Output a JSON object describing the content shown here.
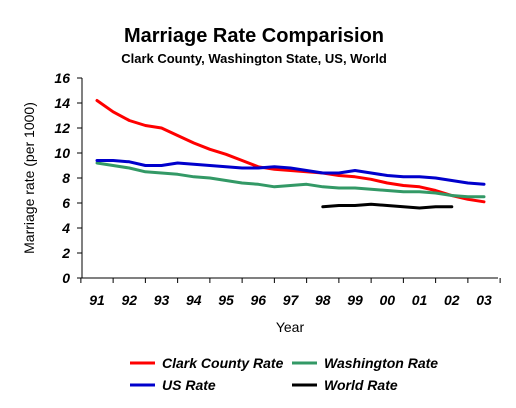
{
  "chart_data": {
    "type": "line",
    "title": "Marriage Rate Comparision",
    "subtitle": "Clark County, Washington State, US, World",
    "xlabel": "Year",
    "ylabel": "Marriage rate (per 1000)",
    "ylim": [
      0,
      16
    ],
    "yticks": [
      "0",
      "2",
      "4",
      "6",
      "8",
      "10",
      "12",
      "14",
      "16"
    ],
    "categories": [
      "91",
      "92",
      "93",
      "94",
      "95",
      "96",
      "97",
      "98",
      "99",
      "00",
      "01",
      "02",
      "03"
    ],
    "grid": false,
    "legend": "bottom",
    "series": [
      {
        "name": "Clark County Rate",
        "color": "#ff0000",
        "points": [
          {
            "x": 0.0,
            "y": 14.2
          },
          {
            "x": 0.5,
            "y": 13.3
          },
          {
            "x": 1.0,
            "y": 12.6
          },
          {
            "x": 1.5,
            "y": 12.2
          },
          {
            "x": 2.0,
            "y": 12.0
          },
          {
            "x": 2.5,
            "y": 11.4
          },
          {
            "x": 3.0,
            "y": 10.8
          },
          {
            "x": 3.5,
            "y": 10.3
          },
          {
            "x": 4.0,
            "y": 9.9
          },
          {
            "x": 4.5,
            "y": 9.4
          },
          {
            "x": 5.0,
            "y": 8.9
          },
          {
            "x": 5.5,
            "y": 8.7
          },
          {
            "x": 6.0,
            "y": 8.6
          },
          {
            "x": 6.5,
            "y": 8.5
          },
          {
            "x": 7.0,
            "y": 8.4
          },
          {
            "x": 7.5,
            "y": 8.2
          },
          {
            "x": 8.0,
            "y": 8.1
          },
          {
            "x": 8.5,
            "y": 7.9
          },
          {
            "x": 9.0,
            "y": 7.6
          },
          {
            "x": 9.5,
            "y": 7.4
          },
          {
            "x": 10.0,
            "y": 7.3
          },
          {
            "x": 10.5,
            "y": 7.0
          },
          {
            "x": 11.0,
            "y": 6.6
          },
          {
            "x": 11.5,
            "y": 6.3
          },
          {
            "x": 12.0,
            "y": 6.1
          }
        ]
      },
      {
        "name": "Washington Rate",
        "color": "#339966",
        "points": [
          {
            "x": 0.0,
            "y": 9.2
          },
          {
            "x": 0.5,
            "y": 9.0
          },
          {
            "x": 1.0,
            "y": 8.8
          },
          {
            "x": 1.5,
            "y": 8.5
          },
          {
            "x": 2.0,
            "y": 8.4
          },
          {
            "x": 2.5,
            "y": 8.3
          },
          {
            "x": 3.0,
            "y": 8.1
          },
          {
            "x": 3.5,
            "y": 8.0
          },
          {
            "x": 4.0,
            "y": 7.8
          },
          {
            "x": 4.5,
            "y": 7.6
          },
          {
            "x": 5.0,
            "y": 7.5
          },
          {
            "x": 5.5,
            "y": 7.3
          },
          {
            "x": 6.0,
            "y": 7.4
          },
          {
            "x": 6.5,
            "y": 7.5
          },
          {
            "x": 7.0,
            "y": 7.3
          },
          {
            "x": 7.5,
            "y": 7.2
          },
          {
            "x": 8.0,
            "y": 7.2
          },
          {
            "x": 8.5,
            "y": 7.1
          },
          {
            "x": 9.0,
            "y": 7.0
          },
          {
            "x": 9.5,
            "y": 6.9
          },
          {
            "x": 10.0,
            "y": 6.9
          },
          {
            "x": 10.5,
            "y": 6.8
          },
          {
            "x": 11.0,
            "y": 6.6
          },
          {
            "x": 11.5,
            "y": 6.5
          },
          {
            "x": 12.0,
            "y": 6.5
          }
        ]
      },
      {
        "name": "US Rate",
        "color": "#0000cc",
        "points": [
          {
            "x": 0.0,
            "y": 9.4
          },
          {
            "x": 0.5,
            "y": 9.4
          },
          {
            "x": 1.0,
            "y": 9.3
          },
          {
            "x": 1.5,
            "y": 9.0
          },
          {
            "x": 2.0,
            "y": 9.0
          },
          {
            "x": 2.5,
            "y": 9.2
          },
          {
            "x": 3.0,
            "y": 9.1
          },
          {
            "x": 3.5,
            "y": 9.0
          },
          {
            "x": 4.0,
            "y": 8.9
          },
          {
            "x": 4.5,
            "y": 8.8
          },
          {
            "x": 5.0,
            "y": 8.8
          },
          {
            "x": 5.5,
            "y": 8.9
          },
          {
            "x": 6.0,
            "y": 8.8
          },
          {
            "x": 6.5,
            "y": 8.6
          },
          {
            "x": 7.0,
            "y": 8.4
          },
          {
            "x": 7.5,
            "y": 8.4
          },
          {
            "x": 8.0,
            "y": 8.6
          },
          {
            "x": 8.5,
            "y": 8.4
          },
          {
            "x": 9.0,
            "y": 8.2
          },
          {
            "x": 9.5,
            "y": 8.1
          },
          {
            "x": 10.0,
            "y": 8.1
          },
          {
            "x": 10.5,
            "y": 8.0
          },
          {
            "x": 11.0,
            "y": 7.8
          },
          {
            "x": 11.5,
            "y": 7.6
          },
          {
            "x": 12.0,
            "y": 7.5
          }
        ]
      },
      {
        "name": "World Rate",
        "color": "#000000",
        "points": [
          {
            "x": 7.0,
            "y": 5.7
          },
          {
            "x": 7.5,
            "y": 5.8
          },
          {
            "x": 8.0,
            "y": 5.8
          },
          {
            "x": 8.5,
            "y": 5.9
          },
          {
            "x": 9.0,
            "y": 5.8
          },
          {
            "x": 9.5,
            "y": 5.7
          },
          {
            "x": 10.0,
            "y": 5.6
          },
          {
            "x": 10.5,
            "y": 5.7
          },
          {
            "x": 11.0,
            "y": 5.7
          }
        ]
      }
    ]
  }
}
